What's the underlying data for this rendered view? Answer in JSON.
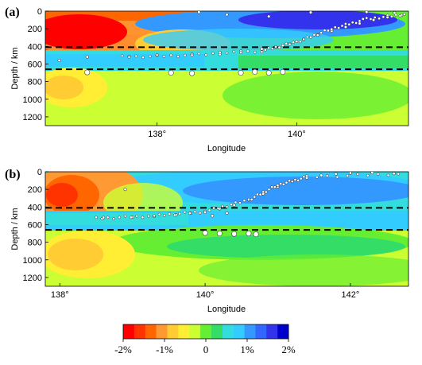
{
  "chart_data": [
    {
      "type": "heatmap",
      "panel_label": "(a)",
      "ylabel": "Depth / km",
      "xlabel": "Longitude",
      "xlim": [
        136.4,
        141.6
      ],
      "ylim": [
        0,
        1300
      ],
      "y_reversed": true,
      "xticks": [
        138,
        140
      ],
      "xtick_labels": [
        "138°",
        "140°"
      ],
      "yticks": [
        0,
        200,
        400,
        600,
        800,
        1000,
        1200
      ],
      "ytick_labels": [
        "0",
        "200",
        "400",
        "600",
        "800",
        "1000",
        "1200"
      ],
      "discontinuities_km": [
        410,
        660
      ],
      "slab_top": [
        [
          137.5,
          520
        ],
        [
          138.5,
          500
        ],
        [
          139.5,
          450
        ],
        [
          140.0,
          350
        ],
        [
          140.5,
          200
        ],
        [
          141.0,
          90
        ],
        [
          141.6,
          30
        ]
      ],
      "earthquakes": [
        [
          136.6,
          560
        ],
        [
          137.0,
          520
        ],
        [
          137.6,
          515
        ],
        [
          138.0,
          500
        ],
        [
          138.5,
          490
        ],
        [
          138.9,
          470
        ],
        [
          139.2,
          455
        ],
        [
          139.5,
          430
        ],
        [
          139.7,
          405
        ],
        [
          139.9,
          370
        ],
        [
          140.1,
          320
        ],
        [
          140.3,
          270
        ],
        [
          140.5,
          225
        ],
        [
          140.7,
          180
        ],
        [
          140.9,
          140
        ],
        [
          141.1,
          100
        ],
        [
          141.3,
          70
        ],
        [
          141.5,
          45
        ],
        [
          139.0,
          40
        ],
        [
          140.2,
          15
        ],
        [
          141.0,
          10
        ],
        [
          141.4,
          20
        ],
        [
          139.6,
          60
        ],
        [
          138.6,
          12
        ]
      ],
      "deep_earthquakes": [
        [
          137.0,
          695
        ],
        [
          138.2,
          700
        ],
        [
          138.5,
          705
        ],
        [
          139.2,
          700
        ],
        [
          139.4,
          690
        ],
        [
          139.6,
          700
        ],
        [
          139.8,
          690
        ]
      ]
    },
    {
      "type": "heatmap",
      "panel_label": "(b)",
      "ylabel": "Depth / km",
      "xlabel": "Longitude",
      "xlim": [
        137.8,
        142.8
      ],
      "ylim": [
        0,
        1300
      ],
      "y_reversed": true,
      "xticks": [
        138,
        140,
        142
      ],
      "xtick_labels": [
        "138°",
        "140°",
        "142°"
      ],
      "yticks": [
        0,
        200,
        400,
        600,
        800,
        1000,
        1200
      ],
      "ytick_labels": [
        "0",
        "200",
        "400",
        "600",
        "800",
        "1000",
        "1200"
      ],
      "discontinuities_km": [
        410,
        660
      ],
      "slab_top": [
        [
          138.5,
          530
        ],
        [
          139.3,
          500
        ],
        [
          140.0,
          450
        ],
        [
          140.6,
          320
        ],
        [
          141.0,
          150
        ],
        [
          141.4,
          60
        ],
        [
          142.8,
          20
        ]
      ],
      "earthquakes": [
        [
          138.6,
          520
        ],
        [
          139.0,
          515
        ],
        [
          139.3,
          505
        ],
        [
          139.6,
          490
        ],
        [
          139.8,
          470
        ],
        [
          140.0,
          450
        ],
        [
          140.2,
          420
        ],
        [
          140.4,
          380
        ],
        [
          140.6,
          320
        ],
        [
          140.8,
          250
        ],
        [
          141.0,
          170
        ],
        [
          141.2,
          110
        ],
        [
          141.4,
          70
        ],
        [
          141.6,
          40
        ],
        [
          141.8,
          25
        ],
        [
          142.0,
          15
        ],
        [
          142.3,
          10
        ],
        [
          142.6,
          20
        ],
        [
          138.9,
          200
        ],
        [
          140.1,
          500
        ],
        [
          140.3,
          470
        ]
      ],
      "deep_earthquakes": [
        [
          140.0,
          695
        ],
        [
          140.2,
          700
        ],
        [
          140.4,
          705
        ],
        [
          140.6,
          700
        ],
        [
          140.7,
          710
        ]
      ]
    }
  ],
  "colorbar": {
    "labels": [
      "-2%",
      "-1%",
      "0",
      "1%",
      "2%"
    ],
    "values": [
      -2,
      -1,
      0,
      1,
      2
    ],
    "colors": [
      "#ff0000",
      "#ff3300",
      "#ff6600",
      "#ff9933",
      "#ffcc33",
      "#ffee33",
      "#ccff33",
      "#66ee33",
      "#33dd66",
      "#33dddd",
      "#33ccff",
      "#3399ff",
      "#3366ff",
      "#3333ee",
      "#0000cc"
    ]
  }
}
